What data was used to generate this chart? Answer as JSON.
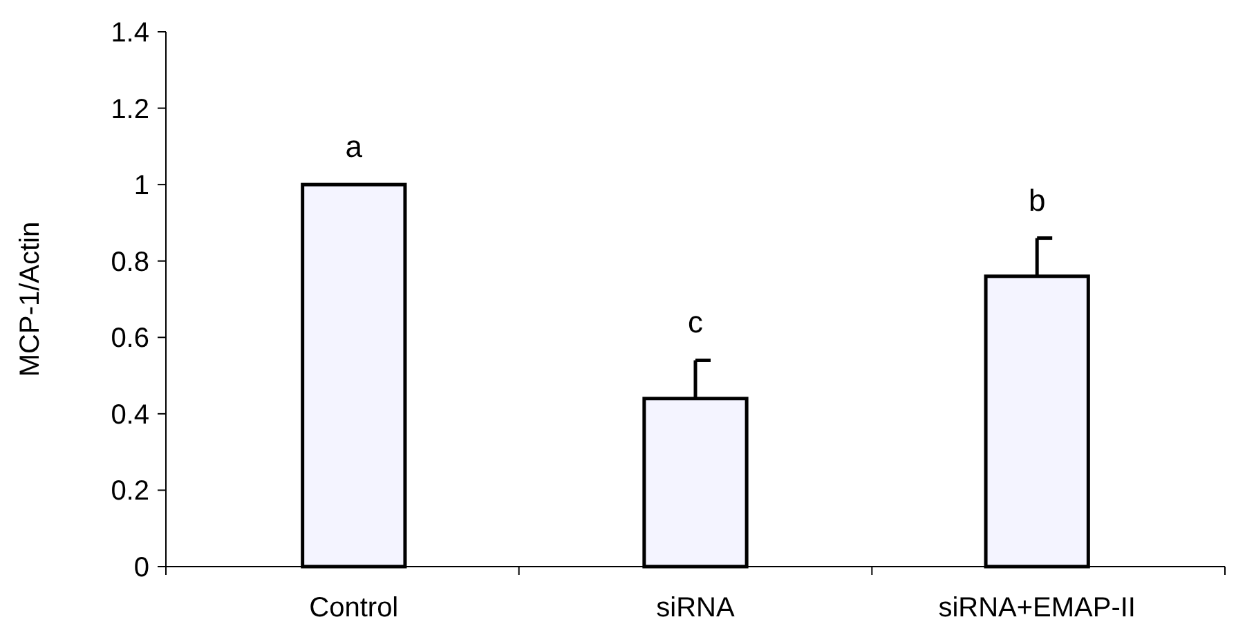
{
  "chart_data": {
    "type": "bar",
    "ylabel": "MCP-1/Actin",
    "categories": [
      "Control",
      "siRNA",
      "siRNA+EMAP-II"
    ],
    "values": [
      1.0,
      0.44,
      0.76
    ],
    "errors": [
      null,
      [
        0.44,
        0.54
      ],
      [
        0.76,
        0.86
      ]
    ],
    "color": "#f4f4ff",
    "ylim": [
      0,
      1.4
    ],
    "yticks": [
      0,
      0.2,
      0.4,
      0.6,
      0.8,
      1,
      1.2,
      1.4
    ],
    "grid": false,
    "annotations": [
      {
        "text": "a",
        "x": "Control",
        "y": 1.0
      },
      {
        "text": "c",
        "x": "siRNA",
        "y": 0.54
      },
      {
        "text": "b",
        "x": "siRNA+EMAP-II",
        "y": 0.86
      }
    ]
  }
}
